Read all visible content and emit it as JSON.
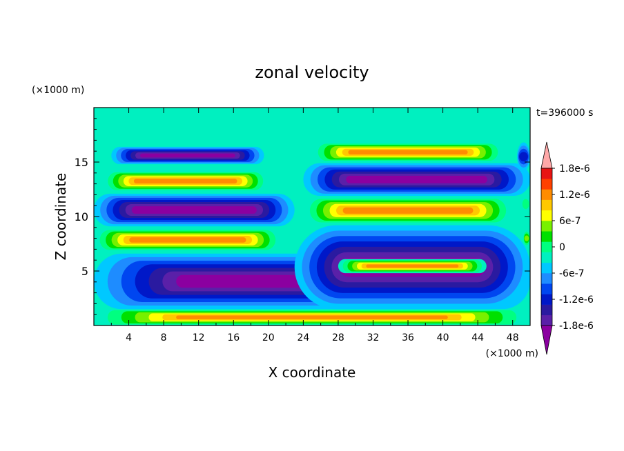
{
  "chart_data": {
    "type": "heatmap",
    "title": "zonal velocity",
    "xlabel": "X coordinate",
    "ylabel": "Z coordinate",
    "x_unit": "(×1000 m)",
    "z_unit": "(×1000 m)",
    "time_label": "t=396000 s",
    "xlim": [
      0,
      50
    ],
    "ylim": [
      0,
      20
    ],
    "xticks": [
      "4",
      "8",
      "12",
      "16",
      "20",
      "24",
      "28",
      "32",
      "36",
      "40",
      "44",
      "48"
    ],
    "yticks": [
      "5",
      "10",
      "15"
    ],
    "colorbar": {
      "range": [
        -2.1e-06,
        2.1e-06
      ],
      "step": 3e-07,
      "labels": [
        "1.8e-6",
        "1.2e-6",
        "6e-7",
        "0",
        "-6e-7",
        "-1.2e-6",
        "-1.8e-6"
      ],
      "colors": [
        "#8b00a0",
        "#5a20a8",
        "#2a1aa0",
        "#0018c8",
        "#0046f0",
        "#1e8cff",
        "#00c8ff",
        "#00f0c0",
        "#00ff80",
        "#00e000",
        "#78f000",
        "#ffff00",
        "#ffc800",
        "#ff8c00",
        "#ff4000",
        "#e81414",
        "#ffa8a8"
      ]
    },
    "features": [
      {
        "kind": "surface-layer",
        "z": [
          17.8,
          20
        ],
        "value": 1e-07
      },
      {
        "kind": "jet",
        "x": [
          2,
          19.5
        ],
        "z": [
          14.8,
          16.4
        ],
        "value": -2.2e-06
      },
      {
        "kind": "jet",
        "x": [
          1,
          20
        ],
        "z": [
          12.3,
          14.2
        ],
        "value": 2.2e-06
      },
      {
        "kind": "jet",
        "x": [
          0,
          23
        ],
        "z": [
          9.1,
          12.1
        ],
        "value": -2.2e-06
      },
      {
        "kind": "jet",
        "x": [
          0,
          21.5
        ],
        "z": [
          6.8,
          8.9
        ],
        "value": 2.2e-06
      },
      {
        "kind": "jet",
        "x": [
          0,
          50
        ],
        "z": [
          1.5,
          6.6
        ],
        "value": -2.2e-06
      },
      {
        "kind": "jet",
        "x": [
          0,
          50
        ],
        "z": [
          0,
          1.5
        ],
        "value": 2.2e-06
      },
      {
        "kind": "jet",
        "x": [
          25,
          47
        ],
        "z": [
          15.0,
          16.8
        ],
        "value": 2.2e-06
      },
      {
        "kind": "jet",
        "x": [
          24,
          50
        ],
        "z": [
          11.9,
          14.9
        ],
        "value": -2.2e-06
      },
      {
        "kind": "jet",
        "x": [
          24,
          48
        ],
        "z": [
          9.3,
          11.8
        ],
        "value": 2.2e-06
      },
      {
        "kind": "jet",
        "x": [
          23,
          50
        ],
        "z": [
          1.5,
          9.2
        ],
        "value": -2.2e-06
      },
      {
        "kind": "jet",
        "x": [
          28,
          45
        ],
        "z": [
          4.8,
          6.1
        ],
        "value": 2.2e-06
      },
      {
        "kind": "jet",
        "x": [
          48.5,
          50
        ],
        "z": [
          14.2,
          16.8
        ],
        "value": -1.2e-06
      },
      {
        "kind": "jet",
        "x": [
          49,
          50
        ],
        "z": [
          10.3,
          12.0
        ],
        "value": 6e-07
      },
      {
        "kind": "jet",
        "x": [
          49.2,
          50
        ],
        "z": [
          7.2,
          8.8
        ],
        "value": 1.2e-06
      }
    ]
  }
}
